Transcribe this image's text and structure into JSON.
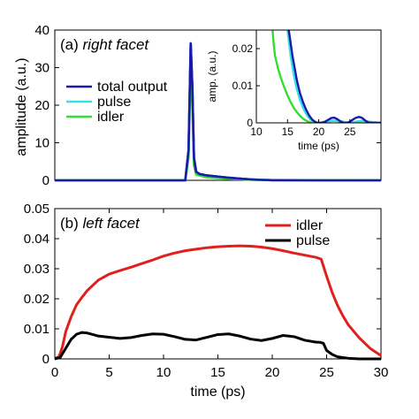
{
  "chart_data": [
    {
      "type": "line",
      "panel_label": "(a)",
      "title": "right facet",
      "xlabel": "",
      "ylabel": "amplitude (a.u.)",
      "xlim": [
        0,
        30
      ],
      "ylim": [
        0,
        40
      ],
      "xticks": [],
      "yticks": [
        0,
        10,
        20,
        30,
        40
      ],
      "legend": "upper-left",
      "grid": false,
      "series": [
        {
          "name": "total output",
          "color": "#1a1aaa",
          "x": [
            0,
            10,
            12.0,
            12.3,
            12.5,
            12.65,
            12.8,
            13.0,
            13.3,
            14,
            15,
            16,
            17,
            18,
            19,
            20,
            25,
            30
          ],
          "y": [
            0,
            0,
            0,
            8,
            36.5,
            25,
            6,
            2.3,
            1.7,
            1.3,
            1.0,
            0.7,
            0.45,
            0.25,
            0.12,
            0.05,
            0,
            0
          ]
        },
        {
          "name": "pulse",
          "color": "#35e0e8",
          "x": [
            0,
            12.0,
            12.3,
            12.5,
            12.65,
            12.8,
            13.0,
            14,
            16,
            18,
            20,
            30
          ],
          "y": [
            0,
            0,
            7,
            34,
            23,
            5,
            1.8,
            1.0,
            0.5,
            0.2,
            0.04,
            0
          ]
        },
        {
          "name": "idler",
          "color": "#33dd33",
          "x": [
            0,
            12.0,
            12.3,
            12.5,
            12.65,
            12.8,
            13.0,
            14,
            16,
            18,
            20,
            30
          ],
          "y": [
            0,
            0,
            6,
            30,
            20,
            4,
            1.5,
            0.8,
            0.4,
            0.15,
            0.03,
            0
          ]
        }
      ],
      "inset": {
        "type": "line",
        "xlabel": "time (ps)",
        "ylabel": "amp. (a.u.)",
        "xlim": [
          10,
          30
        ],
        "ylim": [
          0,
          0.025
        ],
        "xticks": [
          10,
          15,
          20,
          25
        ],
        "yticks": [
          0,
          0.01,
          0.02
        ],
        "series": [
          {
            "name": "total output",
            "color": "#1a1aaa",
            "x": [
              15.2,
              15.8,
              16.5,
              17,
              17.5,
              18,
              18.5,
              19,
              19.5,
              20,
              20.5,
              21,
              21.5,
              22,
              22.5,
              23,
              23.5,
              24,
              24.5,
              25,
              25.5,
              26,
              26.5,
              27,
              27.5,
              28,
              28.5,
              29,
              30
            ],
            "y": [
              0.025,
              0.018,
              0.0115,
              0.008,
              0.0055,
              0.0035,
              0.0019,
              0.0008,
              0.0002,
              0.0,
              0.0,
              0.0003,
              0.0008,
              0.0013,
              0.0014,
              0.001,
              0.0004,
              0.0,
              0.0,
              0.0003,
              0.0009,
              0.0014,
              0.0016,
              0.0013,
              0.0006,
              0.0001,
              0.0,
              0.0,
              0.0
            ]
          },
          {
            "name": "pulse",
            "color": "#35e0e8",
            "x": [
              15.0,
              15.5,
              16,
              16.5,
              17,
              17.5,
              18,
              18.5,
              19,
              19.5,
              20,
              21,
              22,
              23,
              24,
              25,
              26,
              27,
              28,
              30
            ],
            "y": [
              0.025,
              0.018,
              0.013,
              0.009,
              0.0062,
              0.004,
              0.0024,
              0.0012,
              0.0005,
              0.0001,
              0.0,
              0.0002,
              0.0005,
              0.0006,
              0.0003,
              0.0,
              0.0003,
              0.0006,
              0.0003,
              0.0
            ]
          },
          {
            "name": "idler",
            "color": "#33dd33",
            "x": [
              12.6,
              12.8,
              13,
              13.5,
              14,
              14.5,
              15,
              15.5,
              16,
              16.5,
              17,
              17.5,
              18,
              18.5,
              19,
              19.5,
              20,
              21,
              22,
              23,
              24,
              25,
              26,
              27,
              28,
              30
            ],
            "y": [
              0.025,
              0.021,
              0.018,
              0.0145,
              0.0118,
              0.0095,
              0.0074,
              0.0056,
              0.0041,
              0.0029,
              0.0019,
              0.0011,
              0.0006,
              0.0002,
              0.0,
              0.0,
              0.0,
              0.0003,
              0.0006,
              0.0005,
              0.0001,
              0.0,
              0.0003,
              0.0005,
              0.0003,
              0.0
            ]
          }
        ]
      }
    },
    {
      "type": "line",
      "panel_label": "(b)",
      "title": "left facet",
      "xlabel": "time (ps)",
      "ylabel": "",
      "xlim": [
        0,
        30
      ],
      "ylim": [
        0,
        0.05
      ],
      "xticks": [
        0,
        5,
        10,
        15,
        20,
        25,
        30
      ],
      "yticks": [
        0,
        0.01,
        0.02,
        0.03,
        0.04,
        0.05
      ],
      "legend": "upper-right",
      "grid": false,
      "series": [
        {
          "name": "idler",
          "color": "#e0201c",
          "x": [
            0,
            0.4,
            0.7,
            1.0,
            1.5,
            2.0,
            2.5,
            3,
            4,
            5,
            6,
            7,
            8,
            9,
            10,
            11,
            12,
            13,
            14,
            15,
            16,
            17,
            18,
            19,
            20,
            21,
            22,
            23,
            24,
            24.5,
            25,
            25.5,
            26,
            26.5,
            27,
            28,
            29,
            30
          ],
          "y": [
            0,
            0.0008,
            0.004,
            0.009,
            0.014,
            0.018,
            0.0205,
            0.0228,
            0.0262,
            0.0282,
            0.0294,
            0.0305,
            0.0317,
            0.0329,
            0.0342,
            0.0352,
            0.036,
            0.0365,
            0.037,
            0.0373,
            0.0375,
            0.0376,
            0.0375,
            0.0372,
            0.0367,
            0.036,
            0.0352,
            0.0345,
            0.0338,
            0.0332,
            0.0275,
            0.0222,
            0.0178,
            0.0143,
            0.0113,
            0.007,
            0.0035,
            0.0011
          ]
        },
        {
          "name": "pulse",
          "color": "#000000",
          "x": [
            0,
            0.5,
            1.0,
            1.5,
            2.0,
            2.5,
            3,
            3.5,
            4,
            5,
            6,
            7,
            8,
            9,
            10,
            11,
            12,
            13,
            14,
            15,
            16,
            17,
            18,
            19,
            20,
            21,
            22,
            23,
            24,
            24.4,
            24.7,
            25,
            25.5,
            26,
            27,
            28,
            29,
            30
          ],
          "y": [
            0,
            0.0005,
            0.0035,
            0.0065,
            0.0082,
            0.0088,
            0.0086,
            0.0081,
            0.0076,
            0.0072,
            0.0068,
            0.0071,
            0.0078,
            0.0083,
            0.0082,
            0.0074,
            0.0065,
            0.0063,
            0.0072,
            0.0081,
            0.0083,
            0.0076,
            0.0066,
            0.0061,
            0.0068,
            0.0078,
            0.0074,
            0.0062,
            0.0056,
            0.0055,
            0.0052,
            0.0028,
            0.0015,
            0.0007,
            0.0002,
            0.0,
            0.0,
            0.0
          ]
        }
      ]
    }
  ]
}
